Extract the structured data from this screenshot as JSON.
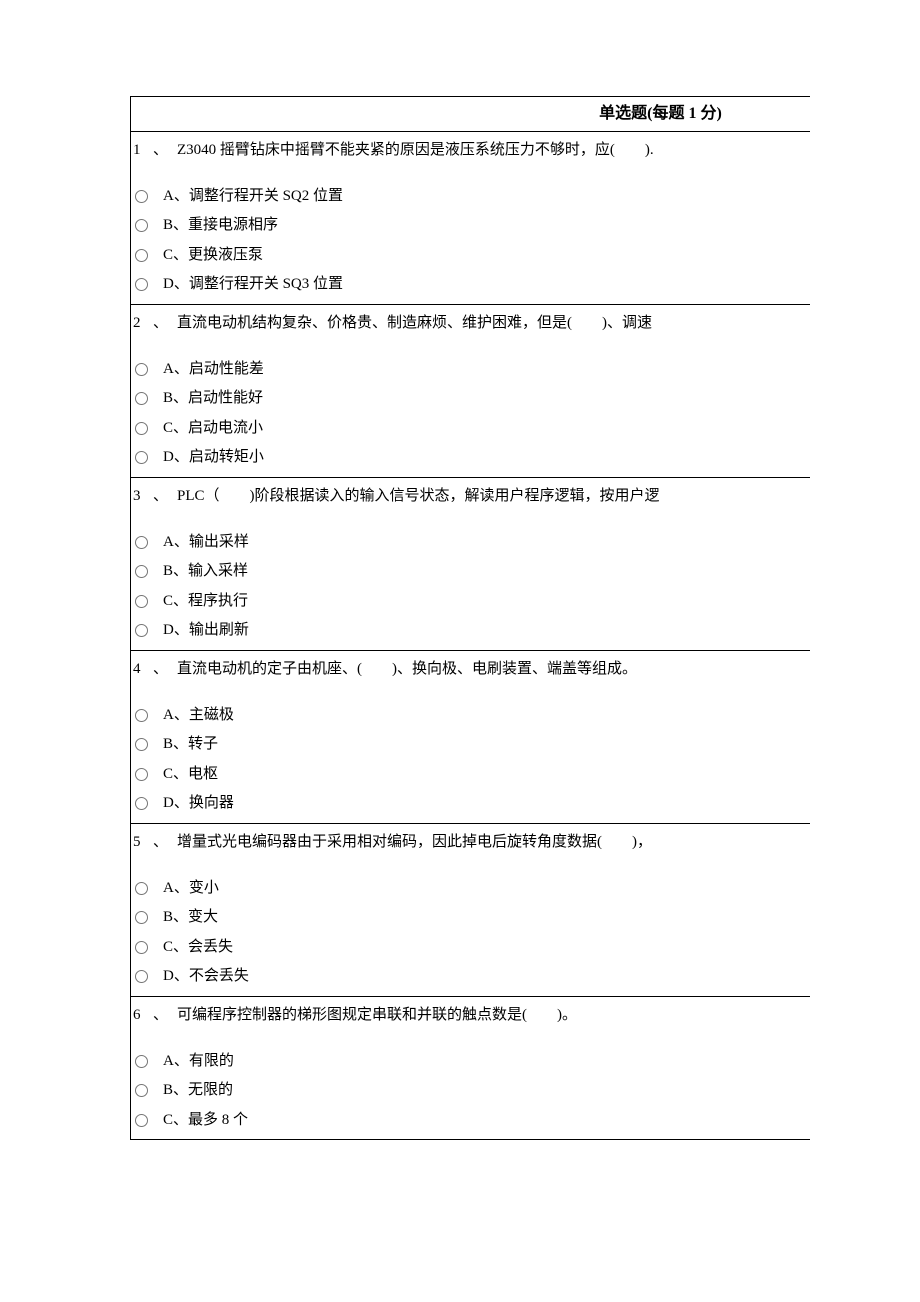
{
  "exam": {
    "header": "单选题(每题 1 分)",
    "questions": [
      {
        "num": "1",
        "sep": "、",
        "stem": "Z3040 摇臂钻床中摇臂不能夹紧的原因是液压系统压力不够时，应(　　).",
        "options": [
          "A、调整行程开关 SQ2 位置",
          "B、重接电源相序",
          "C、更换液压泵",
          "D、调整行程开关 SQ3 位置"
        ]
      },
      {
        "num": "2",
        "sep": "、",
        "stem": "直流电动机结构复杂、价格贵、制造麻烦、维护困难，但是(　　)、调速",
        "options": [
          "A、启动性能差",
          "B、启动性能好",
          "C、启动电流小",
          "D、启动转矩小"
        ]
      },
      {
        "num": "3",
        "sep": "、",
        "stem": "PLC（　　)阶段根据读入的输入信号状态，解读用户程序逻辑，按用户逻",
        "options": [
          "A、输出采样",
          "B、输入采样",
          "C、程序执行",
          "D、输出刷新"
        ]
      },
      {
        "num": "4",
        "sep": "、",
        "stem": "直流电动机的定子由机座、(　　)、换向极、电刷装置、端盖等组成。",
        "options": [
          "A、主磁极",
          "B、转子",
          "C、电枢",
          "D、换向器"
        ]
      },
      {
        "num": "5",
        "sep": "、",
        "stem": "增量式光电编码器由于采用相对编码，因此掉电后旋转角度数据(　　)，",
        "options": [
          "A、变小",
          "B、变大",
          "C、会丢失",
          "D、不会丢失"
        ]
      },
      {
        "num": "6",
        "sep": "、",
        "stem": "可编程序控制器的梯形图规定串联和并联的触点数是(　　)。",
        "options": [
          "A、有限的",
          "B、无限的",
          "C、最多 8 个"
        ]
      }
    ]
  }
}
